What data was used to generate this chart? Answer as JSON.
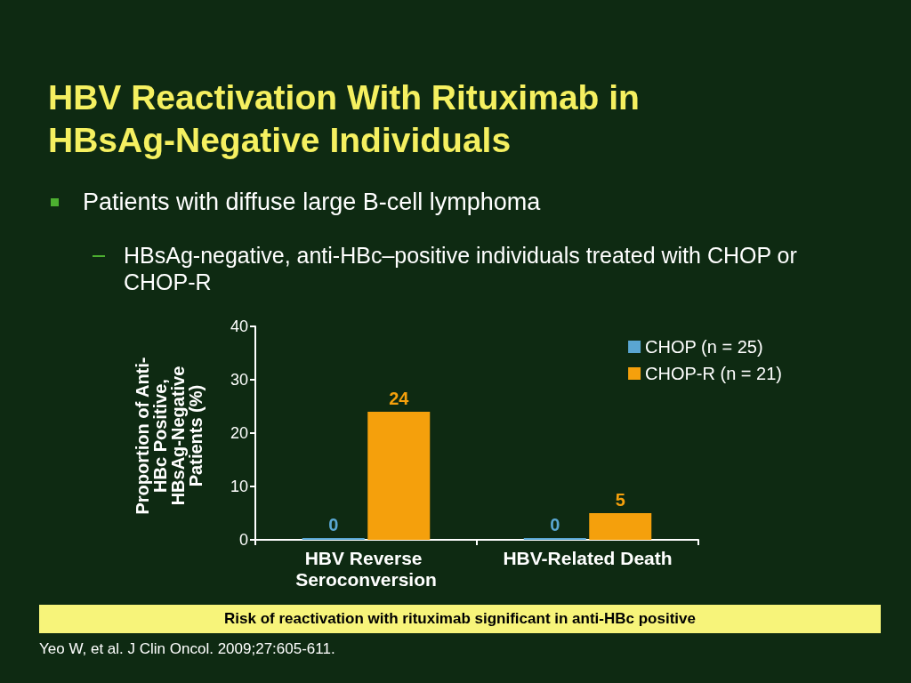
{
  "chart_data": {
    "type": "bar",
    "title": "HBV Reactivation With Rituximab in HBsAg-Negative Individuals",
    "subtitle": "Patients with diffuse large B-cell lymphoma",
    "categories": [
      "HBV Reverse Seroconversion",
      "HBV-Related Death"
    ],
    "series": [
      {
        "name": "CHOP (n = 25)",
        "color": "#5aa6d2",
        "values": [
          0,
          0
        ]
      },
      {
        "name": "CHOP-R (n = 21)",
        "color": "#f5a00c",
        "values": [
          24,
          5
        ]
      }
    ],
    "ylabel": "Proportion of Anti-HBc Positive, HBsAg-Negative Patients (%)",
    "ylim": [
      0,
      40
    ],
    "yticks": [
      0,
      10,
      20,
      30,
      40
    ],
    "grid": false,
    "legend": "top right",
    "data_labels": true,
    "annotations": [
      "HBsAg-negative, anti-HBc–positive individuals treated with CHOP or CHOP-R",
      "Risk of reactivation with rituximab significant in anti-HBc positive",
      "Yeo W, et al. J Clin Oncol. 2009;27:605-611."
    ]
  }
}
